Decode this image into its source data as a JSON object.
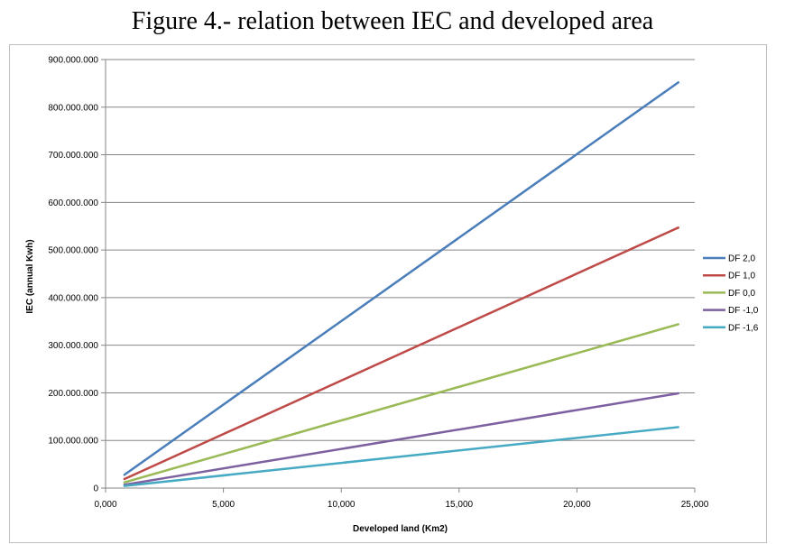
{
  "chart_data": {
    "type": "line",
    "title": "Figure 4.- relation between IEC and developed area",
    "xlabel": "Developed land (Km2)",
    "ylabel": "IEC (annual  Kwh)",
    "xlim": [
      0,
      25
    ],
    "ylim": [
      0,
      900000000
    ],
    "x_ticks": [
      {
        "value": 0,
        "label": "0,000"
      },
      {
        "value": 5,
        "label": "5,000"
      },
      {
        "value": 10,
        "label": "10,000"
      },
      {
        "value": 15,
        "label": "15,000"
      },
      {
        "value": 20,
        "label": "20,000"
      },
      {
        "value": 25,
        "label": "25,000"
      }
    ],
    "y_ticks": [
      {
        "value": 0,
        "label": "0"
      },
      {
        "value": 100000000,
        "label": "100.000.000"
      },
      {
        "value": 200000000,
        "label": "200.000.000"
      },
      {
        "value": 300000000,
        "label": "300.000.000"
      },
      {
        "value": 400000000,
        "label": "400.000.000"
      },
      {
        "value": 500000000,
        "label": "500.000.000"
      },
      {
        "value": 600000000,
        "label": "600.000.000"
      },
      {
        "value": 700000000,
        "label": "700.000.000"
      },
      {
        "value": 800000000,
        "label": "800.000.000"
      },
      {
        "value": 900000000,
        "label": "900.000.000"
      }
    ],
    "grid": true,
    "legend_position": "right",
    "series": [
      {
        "name": "DF 2,0",
        "color": "#4a7ebb",
        "x": [
          0.8,
          24.3
        ],
        "y": [
          28000000,
          852000000
        ]
      },
      {
        "name": "DF 1,0",
        "color": "#be4b48",
        "x": [
          0.8,
          24.3
        ],
        "y": [
          19000000,
          547000000
        ]
      },
      {
        "name": "DF 0,0",
        "color": "#98b954",
        "x": [
          0.8,
          24.3
        ],
        "y": [
          12000000,
          344000000
        ]
      },
      {
        "name": "DF -1,0",
        "color": "#7d60a0",
        "x": [
          0.8,
          24.3
        ],
        "y": [
          7000000,
          199000000
        ]
      },
      {
        "name": "DF -1,6",
        "color": "#46aac5",
        "x": [
          0.8,
          24.3
        ],
        "y": [
          4500000,
          128000000
        ]
      }
    ]
  }
}
